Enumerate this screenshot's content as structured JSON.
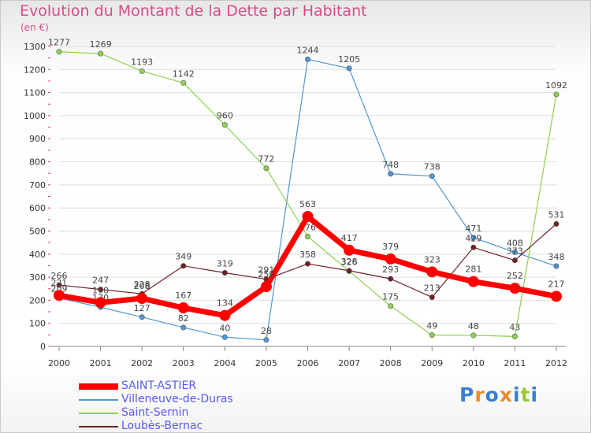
{
  "header": {
    "title": "Evolution du Montant de la Dette par Habitant",
    "unit": "(en €)"
  },
  "logo": {
    "text": "Proxiti",
    "colors": [
      "#3a7fcf",
      "#e98a2b",
      "#3a7fcf",
      "#e98a2b",
      "#3a7fcf",
      "#9ac83a",
      "#3a7fcf"
    ]
  },
  "chart_data": {
    "type": "line",
    "title": "Evolution du Montant de la Dette par Habitant",
    "ylabel": "(en €)",
    "xlabel": "",
    "ylim": [
      0,
      1300
    ],
    "yticks": [
      0,
      100,
      200,
      300,
      400,
      500,
      600,
      700,
      800,
      900,
      1000,
      1100,
      1200,
      1300
    ],
    "x": [
      "2000",
      "2001",
      "2002",
      "2003",
      "2004",
      "2005",
      "2006",
      "2007",
      "2008",
      "2009",
      "2010",
      "2011",
      "2012"
    ],
    "grid": "horizontal",
    "legend_position": "bottom-left",
    "series": [
      {
        "name": "SAINT-ASTIER",
        "color": "#ff0000",
        "values": [
          221,
          190,
          208,
          167,
          134,
          259,
          563,
          417,
          379,
          323,
          281,
          252,
          217
        ]
      },
      {
        "name": "Villeneuve-de-Duras",
        "color": "#4f96d4",
        "values": [
          209,
          170,
          127,
          82,
          40,
          28,
          1244,
          1205,
          748,
          738,
          471,
          408,
          348
        ]
      },
      {
        "name": "Saint-Sernin",
        "color": "#8fd14f",
        "values": [
          1277,
          1269,
          1193,
          1142,
          960,
          772,
          476,
          326,
          175,
          49,
          48,
          43,
          1092
        ]
      },
      {
        "name": "Loubès-Bernac",
        "color": "#6e2226",
        "values": [
          266,
          247,
          228,
          349,
          319,
          291,
          358,
          328,
          293,
          213,
          429,
          373,
          531
        ]
      }
    ]
  }
}
